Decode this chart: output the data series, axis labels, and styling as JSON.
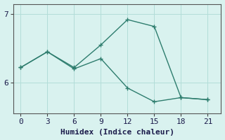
{
  "xlabel": "Humidex (Indice chaleur)",
  "line1_x": [
    0,
    3,
    6,
    9,
    12,
    15,
    18,
    21
  ],
  "line1_y": [
    6.22,
    6.45,
    6.22,
    6.55,
    6.92,
    6.82,
    5.78,
    5.75
  ],
  "line2_x": [
    0,
    3,
    6,
    9,
    12,
    15,
    18,
    21
  ],
  "line2_y": [
    6.22,
    6.45,
    6.2,
    6.35,
    5.92,
    5.72,
    5.78,
    5.75
  ],
  "color": "#2e7d6e",
  "bg_color": "#d9f2ef",
  "grid_color": "#b2ddd8",
  "xlim": [
    -0.8,
    22.5
  ],
  "ylim": [
    5.55,
    7.15
  ],
  "xticks": [
    0,
    3,
    6,
    9,
    12,
    15,
    18,
    21
  ],
  "yticks": [
    6,
    7
  ],
  "marker": "+",
  "markersize": 5,
  "linewidth": 1.0,
  "xlabel_fontsize": 8,
  "tick_fontsize": 8
}
